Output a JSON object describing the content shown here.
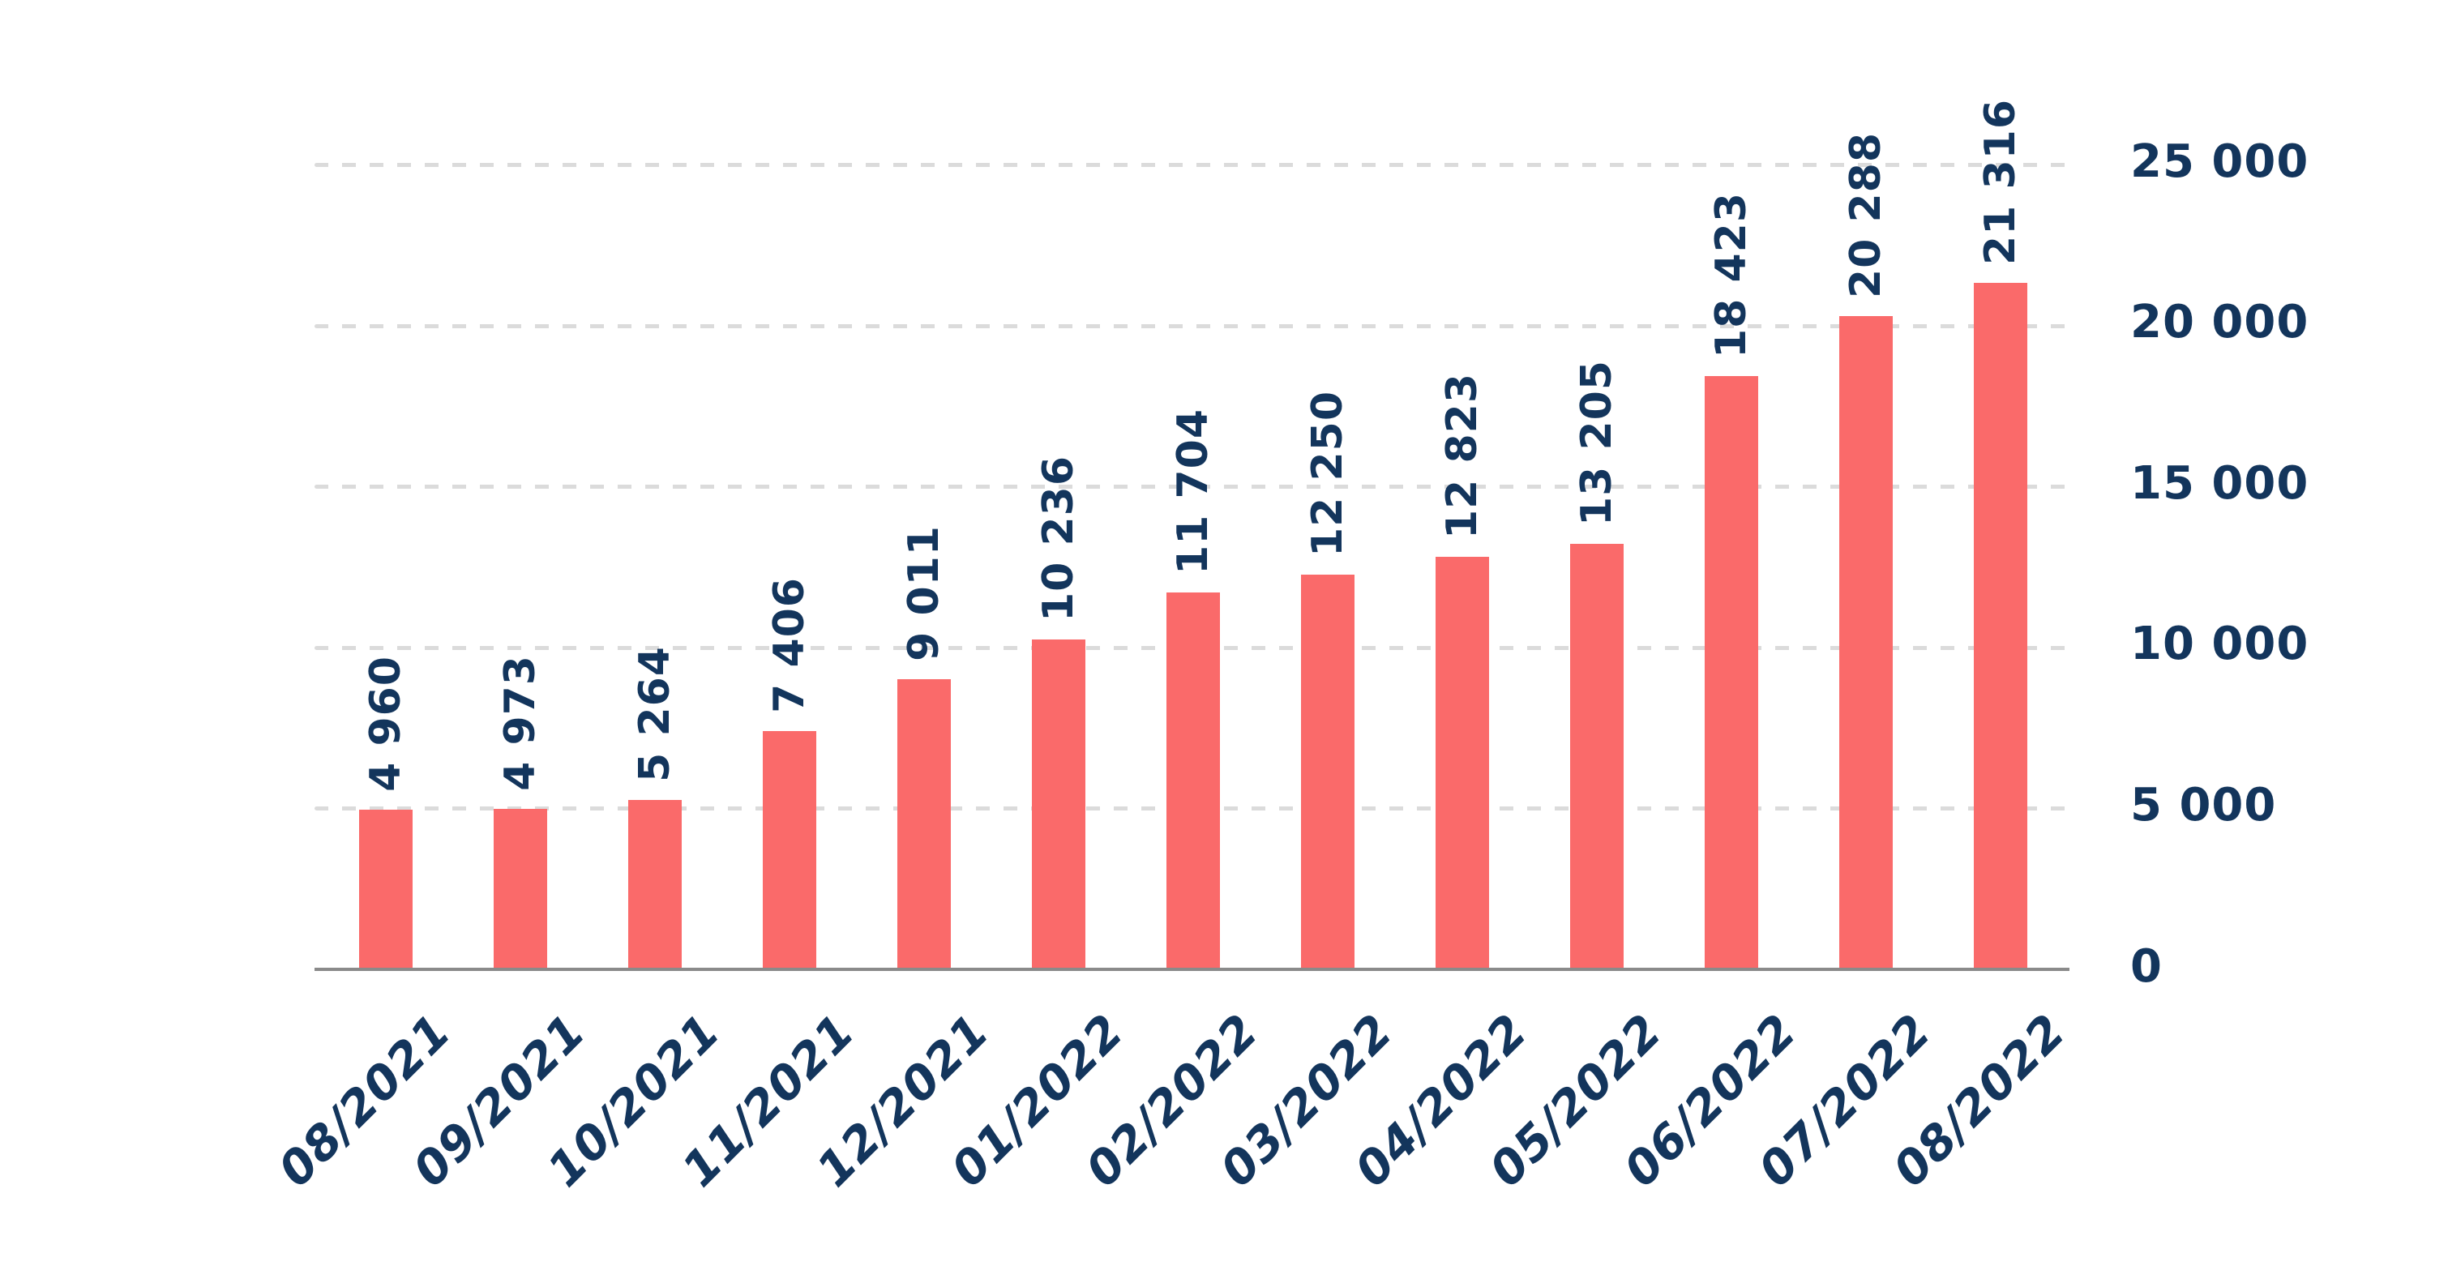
{
  "chart_data": {
    "type": "bar",
    "title": "",
    "xlabel": "",
    "ylabel": "",
    "categories": [
      "08/2021",
      "09/2021",
      "10/2021",
      "11/2021",
      "12/2021",
      "01/2022",
      "02/2022",
      "03/2022",
      "04/2022",
      "05/2022",
      "06/2022",
      "07/2022",
      "08/2022"
    ],
    "values": [
      4960,
      4973,
      5264,
      7406,
      9011,
      10236,
      11704,
      12250,
      12823,
      13205,
      18423,
      20288,
      21316
    ],
    "value_labels": [
      "4 960",
      "4 973",
      "5 264",
      "7 406",
      "9 011",
      "10 236",
      "11 704",
      "12 250",
      "12 823",
      "13 205",
      "18 423",
      "20 288",
      "21 316"
    ],
    "ylim": [
      0,
      25000
    ],
    "yticks": [
      25000,
      20000,
      15000,
      10000,
      5000,
      0
    ],
    "ytick_labels": [
      "25 000",
      "20 000",
      "15 000",
      "10 000",
      "5 000",
      "0"
    ],
    "grid": "horizontal-dashed",
    "legend_position": "none",
    "colors": {
      "bar": "#FA6A6A",
      "label_text": "#13355C",
      "gridline": "#DBDBDB",
      "axis_line": "#8A8A8A",
      "background": "#FFFFFF"
    }
  }
}
